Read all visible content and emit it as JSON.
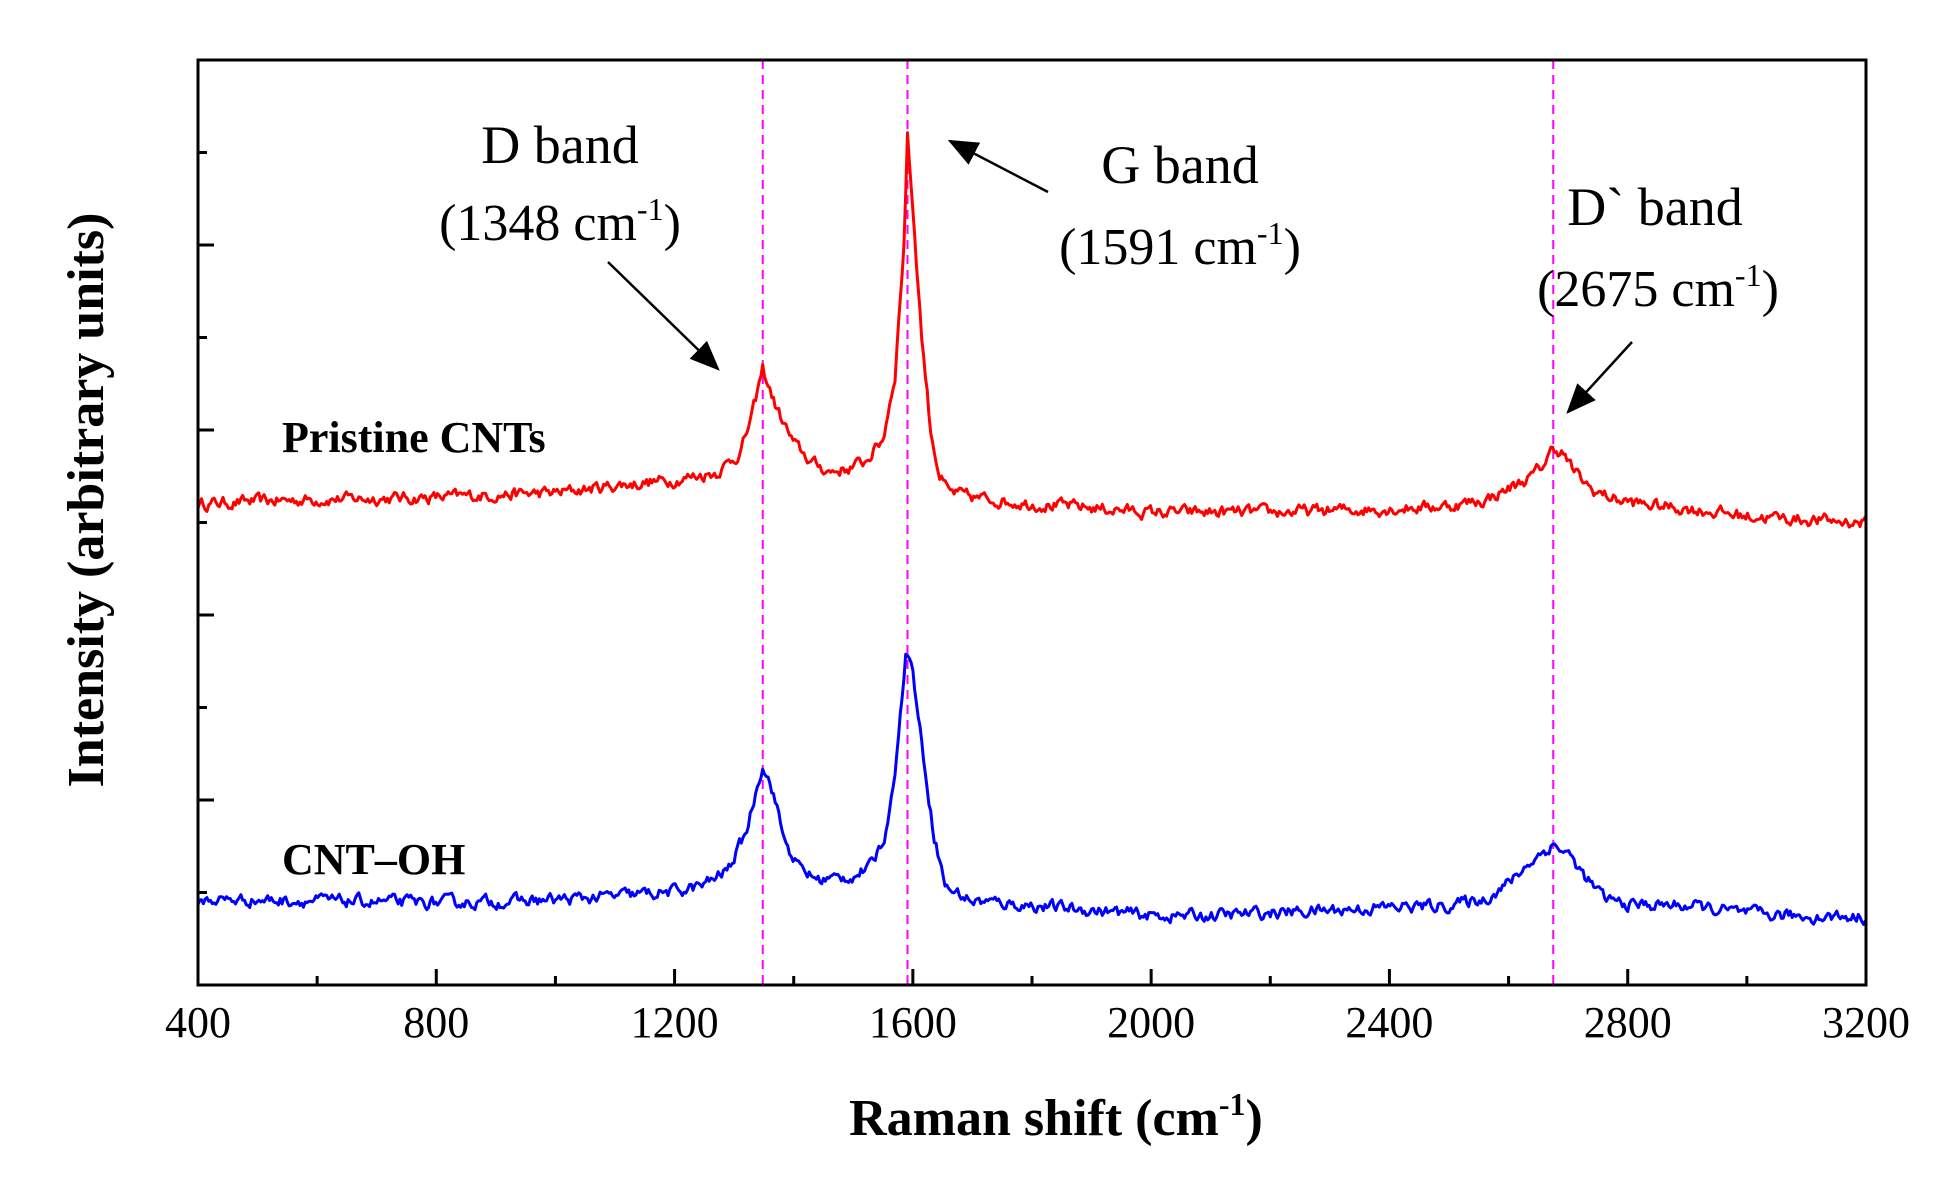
{
  "chart_data": {
    "type": "line",
    "title": "",
    "xlabel": "Raman shift (cm-1)",
    "xlabel_main": "Raman shift (cm",
    "xlabel_sup": "-1",
    "xlabel_end": ")",
    "ylabel": "Intensity (arbitrary units)",
    "xlim": [
      400,
      3200
    ],
    "ylim": [
      0,
      100
    ],
    "xticks": [
      "400",
      "800",
      "1200",
      "1600",
      "2000",
      "2400",
      "2800",
      "3200"
    ],
    "y_tick_labels_shown": false,
    "series": [
      {
        "name": "Pristine CNTs",
        "color": "#ff0000",
        "baseline": 52,
        "points": [
          [
            400,
            52.0
          ],
          [
            500,
            52.3
          ],
          [
            600,
            52.5
          ],
          [
            700,
            52.6
          ],
          [
            800,
            52.7
          ],
          [
            900,
            53.0
          ],
          [
            1000,
            53.2
          ],
          [
            1100,
            54.0
          ],
          [
            1200,
            54.6
          ],
          [
            1270,
            55.4
          ],
          [
            1310,
            57.5
          ],
          [
            1330,
            61.5
          ],
          [
            1348,
            66.6
          ],
          [
            1370,
            62.5
          ],
          [
            1400,
            58.5
          ],
          [
            1430,
            56.5
          ],
          [
            1460,
            55.5
          ],
          [
            1490,
            55.8
          ],
          [
            1520,
            56.6
          ],
          [
            1550,
            59.0
          ],
          [
            1570,
            66.0
          ],
          [
            1585,
            80.0
          ],
          [
            1591,
            91.8
          ],
          [
            1600,
            84.0
          ],
          [
            1615,
            70.0
          ],
          [
            1630,
            60.0
          ],
          [
            1645,
            55.0
          ],
          [
            1660,
            53.3
          ],
          [
            1700,
            52.7
          ],
          [
            1800,
            52.0
          ],
          [
            1900,
            51.6
          ],
          [
            2000,
            51.1
          ],
          [
            2100,
            51.1
          ],
          [
            2200,
            51.1
          ],
          [
            2300,
            51.3
          ],
          [
            2400,
            51.5
          ],
          [
            2500,
            51.8
          ],
          [
            2560,
            52.4
          ],
          [
            2610,
            54.0
          ],
          [
            2640,
            55.0
          ],
          [
            2660,
            56.4
          ],
          [
            2675,
            58.1
          ],
          [
            2690,
            57.6
          ],
          [
            2710,
            55.5
          ],
          [
            2740,
            53.5
          ],
          [
            2780,
            52.5
          ],
          [
            2820,
            52.0
          ],
          [
            2900,
            51.5
          ],
          [
            3000,
            50.7
          ],
          [
            3100,
            50.3
          ],
          [
            3200,
            50.0
          ]
        ]
      },
      {
        "name": "CNT–OH",
        "color": "#0000ff",
        "baseline": 9,
        "points": [
          [
            400,
            9.2
          ],
          [
            500,
            9.2
          ],
          [
            600,
            9.1
          ],
          [
            700,
            9.0
          ],
          [
            800,
            8.9
          ],
          [
            900,
            9.0
          ],
          [
            1000,
            9.2
          ],
          [
            1100,
            9.6
          ],
          [
            1200,
            10.1
          ],
          [
            1250,
            10.8
          ],
          [
            1290,
            12.5
          ],
          [
            1320,
            16.5
          ],
          [
            1348,
            24.0
          ],
          [
            1365,
            21.0
          ],
          [
            1385,
            15.5
          ],
          [
            1410,
            12.6
          ],
          [
            1440,
            11.4
          ],
          [
            1470,
            11.5
          ],
          [
            1500,
            11.8
          ],
          [
            1530,
            12.8
          ],
          [
            1555,
            16.5
          ],
          [
            1575,
            26.0
          ],
          [
            1588,
            36.0
          ],
          [
            1600,
            34.0
          ],
          [
            1615,
            26.0
          ],
          [
            1635,
            16.5
          ],
          [
            1655,
            10.6
          ],
          [
            1700,
            9.1
          ],
          [
            1800,
            8.6
          ],
          [
            1900,
            8.1
          ],
          [
            2000,
            7.5
          ],
          [
            2100,
            7.5
          ],
          [
            2200,
            7.8
          ],
          [
            2300,
            8.1
          ],
          [
            2400,
            8.4
          ],
          [
            2500,
            8.6
          ],
          [
            2560,
            9.3
          ],
          [
            2600,
            11.0
          ],
          [
            2640,
            13.5
          ],
          [
            2675,
            15.2
          ],
          [
            2700,
            14.2
          ],
          [
            2730,
            11.5
          ],
          [
            2760,
            9.4
          ],
          [
            2800,
            8.7
          ],
          [
            2900,
            8.6
          ],
          [
            3000,
            7.7
          ],
          [
            3100,
            7.4
          ],
          [
            3200,
            7.4
          ]
        ]
      }
    ],
    "annotations": [
      {
        "label": "D band",
        "wavenumber_text": "(1348 cm",
        "sup": "-1",
        "close": ")",
        "x": 1348
      },
      {
        "label": "G band",
        "wavenumber_text": "(1591 cm",
        "sup": "-1",
        "close": ")",
        "x": 1591
      },
      {
        "label": "D` band",
        "wavenumber_text": "(2675 cm",
        "sup": "-1",
        "close": ")",
        "x": 2675
      }
    ],
    "reference_line_color": "#ff00ff"
  }
}
